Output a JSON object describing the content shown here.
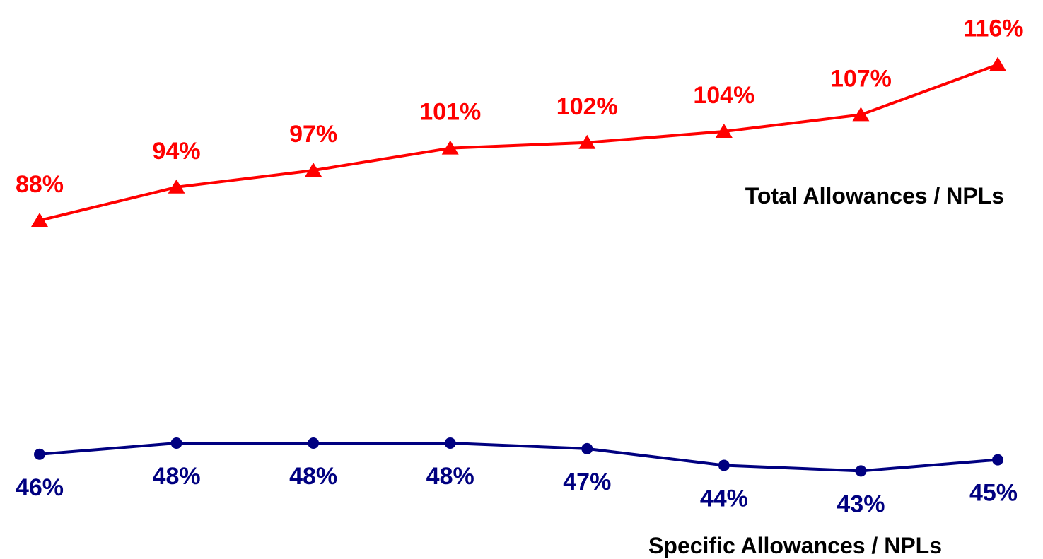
{
  "chart_data": {
    "type": "line",
    "title": "",
    "xlabel": "",
    "ylabel": "",
    "ylim": [
      40,
      120
    ],
    "grid": false,
    "x": [
      "1",
      "2",
      "3",
      "4",
      "5",
      "6",
      "7",
      "8"
    ],
    "series": [
      {
        "name": "Total Allowances / NPLs",
        "values": [
          88,
          94,
          97,
          101,
          102,
          104,
          107,
          116
        ],
        "labels": [
          "88%",
          "94%",
          "97%",
          "101%",
          "102%",
          "104%",
          "107%",
          "116%"
        ],
        "color": "#ff0000",
        "marker": "triangle",
        "label_position": "above"
      },
      {
        "name": "Specific Allowances / NPLs",
        "values": [
          46,
          48,
          48,
          48,
          47,
          44,
          43,
          45
        ],
        "labels": [
          "46%",
          "48%",
          "48%",
          "48%",
          "47%",
          "44%",
          "43%",
          "45%"
        ],
        "color": "#000080",
        "marker": "circle",
        "label_position": "below"
      }
    ]
  }
}
